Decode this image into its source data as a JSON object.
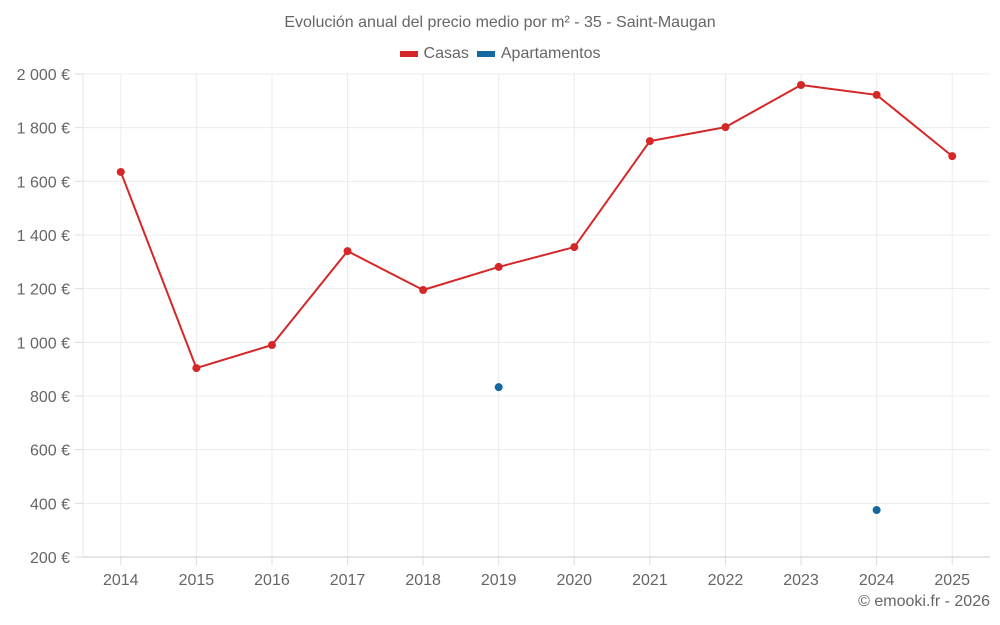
{
  "chart_data": {
    "type": "line",
    "title": "Evolución anual del precio medio por m² - 35 - Saint-Maugan",
    "xlabel": "",
    "ylabel": "",
    "categories": [
      "2014",
      "2015",
      "2016",
      "2017",
      "2018",
      "2019",
      "2020",
      "2021",
      "2022",
      "2023",
      "2024",
      "2025"
    ],
    "ylim": [
      200,
      2000
    ],
    "y_ticks": [
      200,
      400,
      600,
      800,
      1000,
      1200,
      1400,
      1600,
      1800,
      2000
    ],
    "y_tick_labels": [
      "200 €",
      "400 €",
      "600 €",
      "800 €",
      "1 000 €",
      "1 200 €",
      "1 400 €",
      "1 600 €",
      "1 800 €",
      "2 000 €"
    ],
    "grid": true,
    "legend_position": "top-center",
    "series": [
      {
        "name": "Casas",
        "color": "#d62728",
        "values": [
          1635,
          904,
          990,
          1340,
          1195,
          1281,
          1355,
          1750,
          1802,
          1959,
          1922,
          1694
        ]
      },
      {
        "name": "Apartamentos",
        "color": "#1368a0",
        "values": [
          null,
          null,
          null,
          null,
          null,
          833,
          null,
          null,
          null,
          null,
          375,
          null
        ]
      }
    ]
  },
  "credit": "© emooki.fr - 2026"
}
